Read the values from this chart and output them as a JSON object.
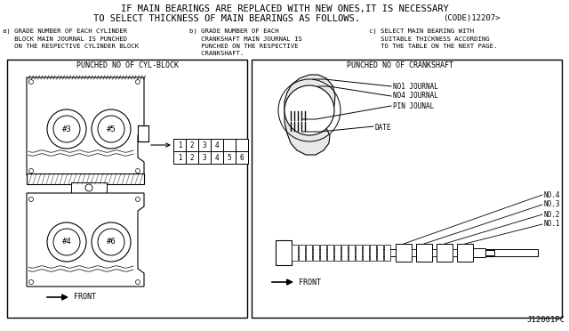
{
  "bg_color": "#ffffff",
  "text_color": "#000000",
  "title_line1": "IF MAIN BEARINGS ARE REPLACED WITH NEW ONES,IT IS NECESSARY",
  "title_line2": "TO SELECT THICKNESS OF MAIN BEARINGS AS FOLLOWS.",
  "title_code": "(CODE)12207>",
  "sub_a": "a) GRADE NUMBER OF EACH CYLINDER\n   BLOCK MAIN JOURNAL IS PUNCHED\n   ON THE RESPECTIVE CYLINDER BLOCK",
  "sub_b": "b) GRADE NUMBER OF EACH\n   CRANKSHAFT MAIN JOURNAL IS\n   PUNCHED ON THE RESPECTIVE\n   CRANKSHAFT.",
  "sub_c": "c) SELECT MAIN BEARING WITH\n   SUITABLE THICKNESS ACCORDING\n   TO THE TABLE ON THE NEXT PAGE.",
  "left_box_title": "PUNCHED NO OF CYL-BLOCK",
  "right_box_title": "PUNCHED NO OF CRANKSHAFT",
  "footer": "J12001PC",
  "font_size_title": 7.5,
  "font_size_sub": 5.2,
  "font_size_box_title": 6.0,
  "font_size_label": 5.5,
  "font_size_footer": 6.5
}
